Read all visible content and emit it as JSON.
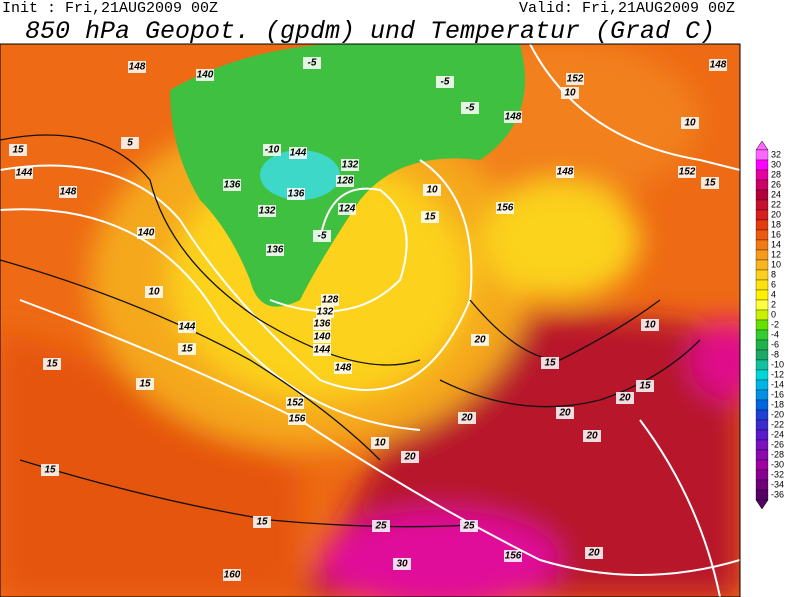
{
  "header": {
    "init": "Init : Fri,21AUG2009 00Z",
    "valid": "Valid: Fri,21AUG2009 00Z",
    "title": "850 hPa Geopot. (gpdm) und Temperatur (Grad C)"
  },
  "legend": {
    "ticks": [
      32,
      30,
      28,
      26,
      24,
      22,
      20,
      18,
      16,
      14,
      12,
      10,
      8,
      6,
      4,
      2,
      0,
      -2,
      -4,
      -6,
      -8,
      -10,
      -12,
      -14,
      -16,
      -18,
      -20,
      -22,
      -24,
      -26,
      -28,
      -30,
      -32,
      -34,
      -36
    ],
    "colors": [
      "#ff66ff",
      "#ff00ff",
      "#e6009e",
      "#cc0066",
      "#b3003b",
      "#c8102e",
      "#d81f1f",
      "#e63b10",
      "#ee5a0f",
      "#f27a13",
      "#f59a1b",
      "#f8b51f",
      "#fbcf1c",
      "#fde20e",
      "#fff000",
      "#ffff40",
      "#c8f000",
      "#66e000",
      "#33cc33",
      "#22b24a",
      "#1aaa66",
      "#11c2a0",
      "#00d6d6",
      "#00b4e6",
      "#0090e6",
      "#0066e0",
      "#1f40d6",
      "#3c2ad0",
      "#5a1acb",
      "#7a10c0",
      "#8c0ab0",
      "#a000a0",
      "#8a0090",
      "#70007a",
      "#550066"
    ]
  },
  "contour_labels": [
    "148",
    "140",
    "-5",
    "-5",
    "-5",
    "148",
    "152",
    "10",
    "148",
    "10",
    "5",
    "15",
    "144",
    "148",
    "-10",
    "144",
    "132",
    "128",
    "136",
    "136",
    "132",
    "124",
    "10",
    "15",
    "156",
    "148",
    "152",
    "15",
    "140",
    "136",
    "-5",
    "10",
    "128",
    "132",
    "136",
    "140",
    "144",
    "148",
    "144",
    "15",
    "15",
    "15",
    "152",
    "156",
    "20",
    "15",
    "10",
    "15",
    "20",
    "20",
    "20",
    "20",
    "10",
    "20",
    "15",
    "15",
    "25",
    "25",
    "156",
    "20",
    "160",
    "30"
  ]
}
